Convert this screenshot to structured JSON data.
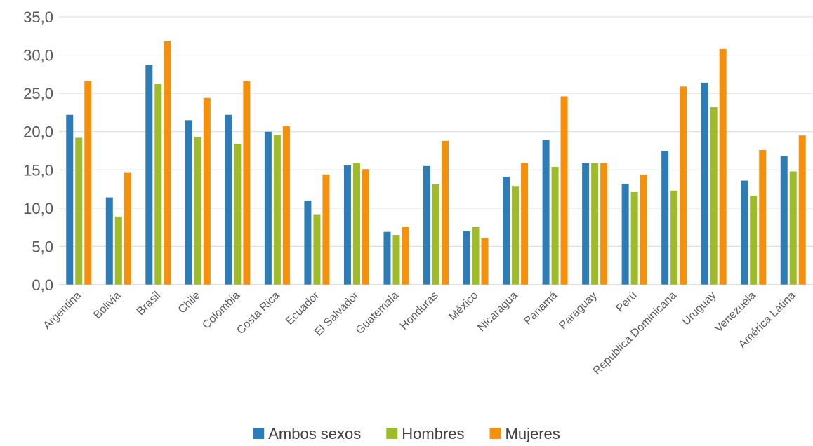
{
  "chart_data": {
    "type": "bar",
    "title": "",
    "xlabel": "",
    "ylabel": "",
    "ylim": [
      0,
      35
    ],
    "ytick_step": 5,
    "ytick_labels": [
      "0,0",
      "5,0",
      "10,0",
      "15,0",
      "20,0",
      "25,0",
      "30,0",
      "35,0"
    ],
    "grid": true,
    "legend_position": "bottom",
    "categories": [
      "Argentina",
      "Bolivia",
      "Brasil",
      "Chile",
      "Colombia",
      "Costa Rica",
      "Ecuador",
      "El Salvador",
      "Guatemala",
      "Honduras",
      "México",
      "Nicaragua",
      "Panamá",
      "Paraguay",
      "Perú",
      "República Dominicana",
      "Uruguay",
      "Venezuela",
      "América Latina"
    ],
    "series": [
      {
        "name": "Ambos sexos",
        "color": "#2E7CB5",
        "values": [
          22.2,
          11.4,
          28.7,
          21.5,
          22.2,
          20.0,
          11.0,
          15.6,
          6.9,
          15.5,
          7.0,
          14.1,
          18.9,
          15.9,
          13.2,
          17.5,
          26.4,
          13.6,
          16.8
        ]
      },
      {
        "name": "Hombres",
        "color": "#9EBB28",
        "values": [
          19.2,
          8.9,
          26.2,
          19.3,
          18.4,
          19.6,
          9.2,
          15.9,
          6.5,
          13.1,
          7.6,
          12.9,
          15.4,
          15.9,
          12.1,
          12.3,
          23.2,
          11.6,
          14.8
        ]
      },
      {
        "name": "Mujeres",
        "color": "#F5900C",
        "values": [
          26.6,
          14.7,
          31.8,
          24.4,
          26.6,
          20.7,
          14.4,
          15.1,
          7.6,
          18.8,
          6.1,
          15.9,
          24.6,
          15.9,
          14.4,
          25.9,
          30.8,
          17.6,
          19.5
        ]
      }
    ]
  }
}
